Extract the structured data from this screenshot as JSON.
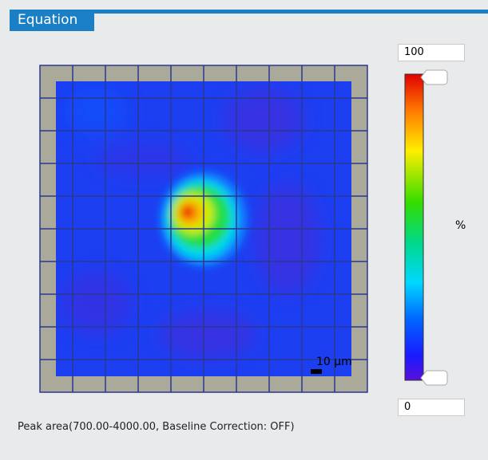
{
  "tab": {
    "title": "Equation"
  },
  "colorbar": {
    "max": "100",
    "min": "0",
    "unit": "%"
  },
  "map": {
    "scale_bar": "10 µm"
  },
  "caption": "Peak area(700.00-4000.00, Baseline Correction: OFF)"
}
